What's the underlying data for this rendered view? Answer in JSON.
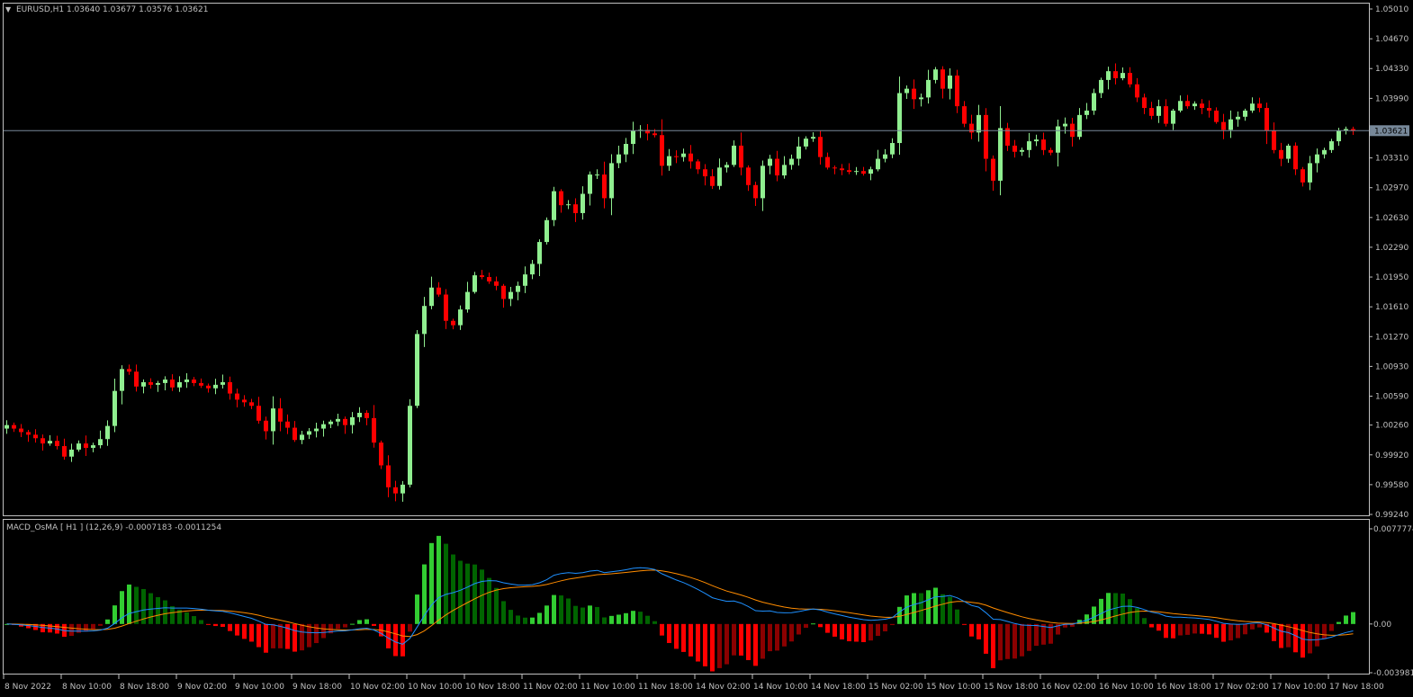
{
  "main_panel": {
    "title": "EURUSD,H1  1.03640 1.03677 1.03576 1.03621",
    "current_price": "1.03621",
    "price_ticks": [
      "1.05010",
      "1.04670",
      "1.04330",
      "1.03990",
      "1.03310",
      "1.02970",
      "1.02630",
      "1.02290",
      "1.01950",
      "1.01610",
      "1.01270",
      "1.00930",
      "1.00590",
      "1.00260",
      "0.99920",
      "0.99580",
      "0.99240"
    ]
  },
  "indicator_panel": {
    "title": "MACD_OsMA [ H1 ] (12,26,9)  -0.0007183 -0.0011254",
    "value_ticks": [
      "0.0077774",
      "0.00",
      "-0.003981"
    ]
  },
  "time_axis": {
    "labels": [
      "8 Nov 2022",
      "8 Nov 10:00",
      "8 Nov 18:00",
      "9 Nov 02:00",
      "9 Nov 10:00",
      "9 Nov 18:00",
      "10 Nov 02:00",
      "10 Nov 10:00",
      "10 Nov 18:00",
      "11 Nov 02:00",
      "11 Nov 10:00",
      "11 Nov 18:00",
      "14 Nov 02:00",
      "14 Nov 10:00",
      "14 Nov 18:00",
      "15 Nov 02:00",
      "15 Nov 10:00",
      "15 Nov 18:00",
      "16 Nov 02:00",
      "16 Nov 10:00",
      "16 Nov 18:00",
      "17 Nov 02:00",
      "17 Nov 10:00",
      "17 Nov 18:00"
    ]
  },
  "colors": {
    "background": "#000000",
    "bull": "#90EE90",
    "bear": "#FF0000",
    "hist_pos_rising": "#32CD32",
    "hist_pos_falling": "#006400",
    "hist_neg_falling": "#FF0000",
    "hist_neg_rising": "#8B0000",
    "macd_line": "#1E90FF",
    "signal_line": "#FF8C00",
    "frame": "#C0C0C0",
    "price_line": "#778899"
  },
  "chart_data": [
    {
      "type": "candlestick",
      "symbol": "EURUSD",
      "timeframe": "H1",
      "ylim": [
        0.9924,
        1.0501
      ],
      "close": [
        1.0026,
        1.0022,
        1.0018,
        1.0015,
        1.0011,
        1.0005,
        1.0008,
        1.0002,
        0.999,
        0.9998,
        1.0005,
        1.0,
        1.0003,
        1.001,
        1.0025,
        1.0065,
        1.009,
        1.0087,
        1.007,
        1.0075,
        1.0072,
        1.0074,
        1.0078,
        1.0069,
        1.0075,
        1.0078,
        1.0074,
        1.0071,
        1.0068,
        1.0072,
        1.0075,
        1.0062,
        1.0055,
        1.0052,
        1.0048,
        1.0031,
        1.0019,
        1.0045,
        1.003,
        1.0023,
        1.0009,
        1.0015,
        1.0019,
        1.0022,
        1.0027,
        1.003,
        1.0033,
        1.0026,
        1.0035,
        1.004,
        1.0034,
        1.0006,
        0.998,
        0.9955,
        0.9948,
        0.9958,
        1.0048,
        1.013,
        1.0162,
        1.0183,
        1.0175,
        1.0145,
        1.014,
        1.0158,
        1.0178,
        1.0197,
        1.0195,
        1.019,
        1.0185,
        1.017,
        1.0178,
        1.0185,
        1.0198,
        1.021,
        1.0235,
        1.026,
        1.0293,
        1.0277,
        1.0278,
        1.0268,
        1.029,
        1.0312,
        1.0312,
        1.0285,
        1.0325,
        1.0335,
        1.0347,
        1.0362,
        1.0363,
        1.0359,
        1.0357,
        1.0322,
        1.0333,
        1.0332,
        1.0336,
        1.0327,
        1.0318,
        1.031,
        1.0299,
        1.032,
        1.0323,
        1.0345,
        1.032,
        1.03,
        1.0285,
        1.0322,
        1.033,
        1.0311,
        1.0323,
        1.033,
        1.0344,
        1.0353,
        1.0355,
        1.0332,
        1.032,
        1.0319,
        1.0317,
        1.0315,
        1.0316,
        1.0313,
        1.0318,
        1.033,
        1.0335,
        1.0348,
        1.0405,
        1.041,
        1.0398,
        1.04,
        1.042,
        1.0432,
        1.041,
        1.0425,
        1.039,
        1.037,
        1.036,
        1.038,
        1.033,
        1.0305,
        1.0365,
        1.0345,
        1.0338,
        1.034,
        1.035,
        1.0352,
        1.034,
        1.0337,
        1.0367,
        1.037,
        1.0355,
        1.038,
        1.0385,
        1.0405,
        1.042,
        1.043,
        1.0422,
        1.0428,
        1.0415,
        1.04,
        1.0388,
        1.0379,
        1.039,
        1.037,
        1.0385,
        1.0396,
        1.039,
        1.0393,
        1.0388,
        1.0385,
        1.0372,
        1.0363,
        1.0375,
        1.0378,
        1.0385,
        1.0393,
        1.0388,
        1.0362,
        1.034,
        1.033,
        1.0345,
        1.0318,
        1.0303,
        1.0325,
        1.0335,
        1.034,
        1.035,
        1.0362,
        1.0364,
        1.0362
      ],
      "price_line": 1.03621
    },
    {
      "type": "histogram+lines",
      "name": "MACD_OsMA [ H1 ] (12,26,9)",
      "params": [
        12,
        26,
        9
      ],
      "ylim": [
        -0.003981,
        0.0077774
      ],
      "readout": [
        -0.0007183,
        -0.0011254
      ]
    }
  ]
}
